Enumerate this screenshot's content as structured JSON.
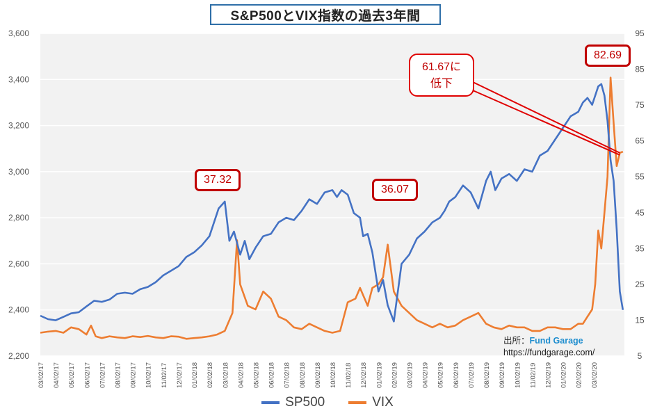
{
  "title": "S&P500とVIX指数の過去3年間",
  "legend": [
    {
      "name": "SP500",
      "color": "#4472c4"
    },
    {
      "name": "VIX",
      "color": "#ed7d31"
    }
  ],
  "callouts": {
    "peak_2018": "37.32",
    "peak_2018_late": "36.07",
    "peak_2020": "82.69",
    "drop_note_line1": "61.67に",
    "drop_note_line2": "低下"
  },
  "source": {
    "label": "出所：",
    "brand": "Fund Garage",
    "url": "https://fundgarage.com/"
  },
  "chart_data": {
    "type": "line",
    "xlabel": "",
    "ylabel_left": "",
    "ylabel_right": "",
    "y_left_range": [
      2200,
      3600
    ],
    "y_right_range": [
      5,
      95
    ],
    "y_left_ticks": [
      "2,200",
      "2,400",
      "2,600",
      "2,800",
      "3,000",
      "3,200",
      "3,400",
      "3,600"
    ],
    "y_right_ticks": [
      "5",
      "15",
      "25",
      "35",
      "45",
      "55",
      "65",
      "75",
      "85",
      "95"
    ],
    "x_ticks": [
      "03/02/17",
      "04/02/17",
      "05/02/17",
      "06/02/17",
      "07/02/17",
      "08/02/17",
      "09/02/17",
      "10/02/17",
      "11/02/17",
      "12/02/17",
      "01/02/18",
      "02/02/18",
      "03/02/18",
      "04/02/18",
      "05/02/18",
      "06/02/18",
      "07/02/18",
      "08/02/18",
      "09/02/18",
      "10/02/18",
      "11/02/18",
      "12/02/18",
      "01/02/19",
      "02/02/19",
      "03/02/19",
      "04/02/19",
      "05/02/19",
      "06/02/19",
      "07/02/19",
      "08/02/19",
      "09/02/19",
      "10/02/19",
      "11/02/19",
      "12/02/19",
      "01/02/20",
      "02/02/20",
      "03/02/20"
    ],
    "x_range": [
      0,
      38
    ],
    "grid": "horizontal",
    "legend_position": "bottom",
    "series": [
      {
        "name": "SP500",
        "axis": "left",
        "color": "#4472c4",
        "x": [
          0,
          0.5,
          1,
          1.5,
          2,
          2.5,
          3,
          3.5,
          4,
          4.5,
          5,
          5.5,
          6,
          6.5,
          7,
          7.5,
          8,
          8.5,
          9,
          9.5,
          10,
          10.5,
          11,
          11.3,
          11.6,
          12,
          12.3,
          12.6,
          13,
          13.3,
          13.6,
          14,
          14.5,
          15,
          15.5,
          16,
          16.5,
          17,
          17.5,
          18,
          18.5,
          19,
          19.3,
          19.6,
          20,
          20.4,
          20.8,
          21,
          21.3,
          21.6,
          22,
          22.3,
          22.6,
          23,
          23.5,
          24,
          24.5,
          25,
          25.5,
          26,
          26.3,
          26.6,
          27,
          27.5,
          28,
          28.5,
          29,
          29.3,
          29.6,
          30,
          30.5,
          31,
          31.5,
          32,
          32.5,
          33,
          33.5,
          34,
          34.5,
          35,
          35.3,
          35.6,
          35.9,
          36.1,
          36.3,
          36.5,
          36.7,
          36.9,
          37.1,
          37.3,
          37.5,
          37.7,
          37.9
        ],
        "y": [
          2375,
          2360,
          2355,
          2370,
          2385,
          2390,
          2415,
          2440,
          2435,
          2445,
          2470,
          2475,
          2470,
          2490,
          2500,
          2520,
          2550,
          2570,
          2590,
          2630,
          2650,
          2680,
          2720,
          2780,
          2840,
          2870,
          2700,
          2740,
          2640,
          2700,
          2620,
          2670,
          2720,
          2730,
          2780,
          2800,
          2790,
          2830,
          2880,
          2860,
          2910,
          2920,
          2890,
          2920,
          2900,
          2820,
          2800,
          2720,
          2730,
          2650,
          2480,
          2530,
          2420,
          2350,
          2600,
          2640,
          2710,
          2740,
          2780,
          2800,
          2830,
          2870,
          2890,
          2940,
          2910,
          2840,
          2960,
          3000,
          2920,
          2970,
          2990,
          2960,
          3010,
          3000,
          3070,
          3090,
          3140,
          3190,
          3240,
          3260,
          3300,
          3320,
          3290,
          3330,
          3370,
          3380,
          3330,
          3220,
          3050,
          2960,
          2750,
          2480,
          2400
        ]
      },
      {
        "name": "VIX",
        "axis": "right",
        "color": "#ed7d31",
        "x": [
          0,
          0.5,
          1,
          1.5,
          2,
          2.5,
          3,
          3.3,
          3.6,
          4,
          4.5,
          5,
          5.5,
          6,
          6.5,
          7,
          7.5,
          8,
          8.5,
          9,
          9.5,
          10,
          10.5,
          11,
          11.5,
          12,
          12.5,
          12.8,
          13,
          13.5,
          14,
          14.5,
          15,
          15.5,
          16,
          16.5,
          17,
          17.5,
          18,
          18.5,
          19,
          19.5,
          20,
          20.5,
          20.8,
          21,
          21.3,
          21.6,
          22,
          22.3,
          22.6,
          23,
          23.5,
          24,
          24.5,
          25,
          25.5,
          26,
          26.5,
          27,
          27.5,
          28,
          28.5,
          29,
          29.5,
          30,
          30.5,
          31,
          31.5,
          32,
          32.5,
          33,
          33.5,
          34,
          34.5,
          35,
          35.3,
          35.6,
          35.9,
          36.1,
          36.3,
          36.5,
          36.7,
          36.9,
          37.1,
          37.3,
          37.5,
          37.7,
          37.9
        ],
        "y": [
          11.5,
          11.8,
          12,
          11.5,
          13,
          12.5,
          11,
          13.5,
          10.5,
          10,
          10.5,
          10.2,
          10,
          10.5,
          10.3,
          10.6,
          10.2,
          10,
          10.5,
          10.4,
          9.8,
          10,
          10.2,
          10.5,
          11,
          12,
          17,
          37.32,
          25,
          19,
          18,
          23,
          21,
          16,
          15,
          13,
          12.5,
          14,
          13,
          12,
          11.5,
          12,
          20,
          21,
          24,
          22,
          19,
          24,
          25,
          27,
          36.07,
          23,
          19,
          17,
          15,
          14,
          13,
          14,
          13,
          13.5,
          15,
          16,
          17,
          14,
          13,
          12.5,
          13.5,
          13,
          13,
          12,
          12,
          13,
          13,
          12.5,
          12.5,
          14,
          14,
          16,
          18,
          25,
          40,
          35,
          45,
          55,
          82.69,
          70,
          58,
          61.67,
          62
        ]
      }
    ]
  }
}
